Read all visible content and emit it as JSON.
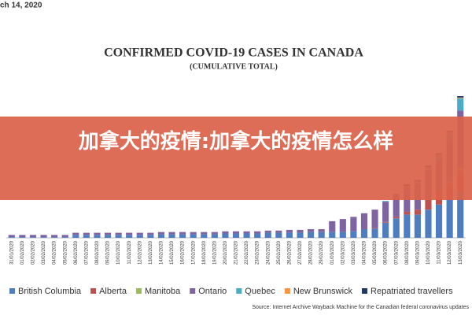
{
  "header": "ch 14, 2020",
  "banner": "加拿大的疫情:加拿大的疫情怎么样",
  "chart_data": {
    "type": "stacked-bar",
    "title": "CONFIRMED COVID-19 CASES IN CANADA",
    "subtitle": "(CUMULATIVE TOTAL)",
    "source": "Source: Internet Archive Wayback Machine for the Canadian federal coronavirus updates",
    "categories": [
      "31/01/2020",
      "01/02/2020",
      "02/02/2020",
      "03/02/2020",
      "04/02/2020",
      "05/02/2020",
      "06/02/2020",
      "07/02/2020",
      "08/02/2020",
      "09/02/2020",
      "10/02/2020",
      "11/02/2020",
      "12/02/2020",
      "13/02/2020",
      "14/02/2020",
      "15/02/2020",
      "16/02/2020",
      "17/02/2020",
      "18/02/2020",
      "19/02/2020",
      "20/02/2020",
      "21/02/2020",
      "22/02/2020",
      "23/02/2020",
      "24/02/2020",
      "25/02/2020",
      "26/02/2020",
      "27/02/2020",
      "28/02/2020",
      "29/02/2020",
      "01/03/2020",
      "02/03/2020",
      "03/03/2020",
      "04/03/2020",
      "05/03/2020",
      "06/03/2020",
      "07/03/2020",
      "08/03/2020",
      "09/03/2020",
      "10/03/2020",
      "11/03/2020",
      "12/03/2020",
      "13/03/2020"
    ],
    "series": [
      {
        "name": "British Columbia",
        "color": "#4f7ec0",
        "values": [
          1,
          1,
          1,
          1,
          1,
          1,
          4,
          4,
          4,
          4,
          4,
          4,
          4,
          4,
          5,
          5,
          5,
          5,
          5,
          5,
          6,
          6,
          6,
          6,
          7,
          7,
          7,
          7,
          8,
          8,
          8,
          8,
          9,
          12,
          13,
          21,
          27,
          32,
          32,
          39,
          46,
          53,
          64
        ]
      },
      {
        "name": "Alberta",
        "color": "#c0504d",
        "values": [
          0,
          0,
          0,
          0,
          0,
          0,
          0,
          0,
          0,
          0,
          0,
          0,
          0,
          0,
          0,
          0,
          0,
          0,
          0,
          0,
          0,
          0,
          0,
          0,
          0,
          0,
          0,
          0,
          0,
          0,
          0,
          0,
          0,
          0,
          1,
          1,
          2,
          4,
          7,
          14,
          19,
          23,
          29
        ]
      },
      {
        "name": "Manitoba",
        "color": "#9bbb59",
        "values": [
          0,
          0,
          0,
          0,
          0,
          0,
          0,
          0,
          0,
          0,
          0,
          0,
          0,
          0,
          0,
          0,
          0,
          0,
          0,
          0,
          0,
          0,
          0,
          0,
          0,
          0,
          0,
          0,
          0,
          0,
          0,
          0,
          0,
          0,
          0,
          0,
          0,
          0,
          0,
          0,
          0,
          1,
          4
        ]
      },
      {
        "name": "Ontario",
        "color": "#8064a2",
        "values": [
          3,
          3,
          3,
          3,
          3,
          3,
          3,
          3,
          3,
          3,
          3,
          3,
          3,
          3,
          3,
          3,
          3,
          3,
          3,
          3,
          3,
          3,
          3,
          3,
          3,
          3,
          4,
          4,
          4,
          4,
          15,
          18,
          20,
          22,
          25,
          28,
          31,
          34,
          36,
          41,
          42,
          59,
          79
        ]
      },
      {
        "name": "Quebec",
        "color": "#4bacc6",
        "values": [
          0,
          0,
          0,
          0,
          0,
          0,
          0,
          0,
          0,
          0,
          0,
          0,
          0,
          0,
          0,
          0,
          0,
          0,
          0,
          0,
          0,
          0,
          0,
          0,
          0,
          0,
          0,
          0,
          0,
          0,
          0,
          0,
          0,
          0,
          0,
          1,
          1,
          2,
          3,
          4,
          7,
          9,
          17
        ]
      },
      {
        "name": "New Brunswick",
        "color": "#f79646",
        "values": [
          0,
          0,
          0,
          0,
          0,
          0,
          0,
          0,
          0,
          0,
          0,
          0,
          0,
          0,
          0,
          0,
          0,
          0,
          0,
          0,
          0,
          0,
          0,
          0,
          0,
          0,
          0,
          0,
          0,
          0,
          0,
          0,
          0,
          0,
          0,
          0,
          0,
          0,
          0,
          0,
          1,
          1,
          1
        ]
      },
      {
        "name": "Repatriated travellers",
        "color": "#1f3864",
        "values": [
          0,
          0,
          0,
          0,
          0,
          0,
          0,
          0,
          0,
          0,
          0,
          0,
          0,
          0,
          0,
          0,
          0,
          0,
          0,
          0,
          0,
          0,
          0,
          0,
          0,
          0,
          0,
          0,
          0,
          0,
          0,
          0,
          0,
          0,
          0,
          0,
          0,
          2,
          2,
          2,
          2,
          2,
          2
        ]
      }
    ],
    "ylim": [
      0,
      220
    ]
  }
}
